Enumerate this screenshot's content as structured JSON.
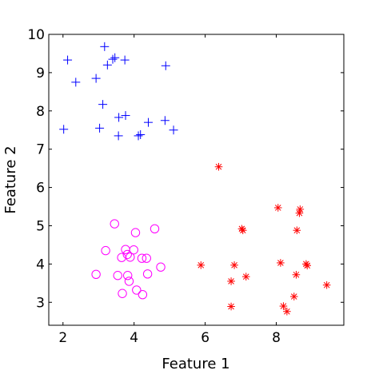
{
  "chart_data": {
    "type": "scatter",
    "title": "",
    "xlabel": "Feature 1",
    "ylabel": "Feature 2",
    "xlim": [
      1.6,
      9.9
    ],
    "ylim": [
      2.4,
      10.0
    ],
    "xticks": [
      2,
      4,
      6,
      8
    ],
    "yticks": [
      3,
      4,
      5,
      6,
      7,
      8,
      9,
      10
    ],
    "grid": false,
    "series": [
      {
        "marker": "plus",
        "color": "#0000ff",
        "points": [
          [
            2.13,
            9.33
          ],
          [
            3.17,
            9.68
          ],
          [
            3.46,
            9.39
          ],
          [
            3.74,
            9.33
          ],
          [
            3.4,
            9.35
          ],
          [
            3.25,
            9.2
          ],
          [
            4.89,
            9.18
          ],
          [
            2.93,
            8.85
          ],
          [
            2.36,
            8.75
          ],
          [
            3.12,
            8.17
          ],
          [
            3.57,
            7.83
          ],
          [
            3.76,
            7.88
          ],
          [
            4.4,
            7.7
          ],
          [
            4.87,
            7.75
          ],
          [
            2.02,
            7.52
          ],
          [
            3.03,
            7.55
          ],
          [
            5.11,
            7.5
          ],
          [
            3.56,
            7.35
          ],
          [
            4.12,
            7.35
          ],
          [
            4.18,
            7.38
          ]
        ]
      },
      {
        "marker": "circle",
        "color": "#ff00ff",
        "points": [
          [
            3.45,
            5.05
          ],
          [
            4.58,
            4.92
          ],
          [
            4.04,
            4.82
          ],
          [
            3.2,
            4.35
          ],
          [
            3.76,
            4.38
          ],
          [
            3.99,
            4.37
          ],
          [
            3.81,
            4.25
          ],
          [
            3.65,
            4.17
          ],
          [
            3.89,
            4.18
          ],
          [
            4.22,
            4.15
          ],
          [
            4.35,
            4.15
          ],
          [
            4.75,
            3.92
          ],
          [
            3.54,
            3.7
          ],
          [
            3.82,
            3.7
          ],
          [
            4.38,
            3.74
          ],
          [
            2.93,
            3.73
          ],
          [
            3.86,
            3.55
          ],
          [
            4.07,
            3.32
          ],
          [
            3.67,
            3.23
          ],
          [
            4.24,
            3.2
          ]
        ]
      },
      {
        "marker": "asterisk",
        "color": "#ff0000",
        "points": [
          [
            6.38,
            6.54
          ],
          [
            8.05,
            5.47
          ],
          [
            8.67,
            5.43
          ],
          [
            8.65,
            5.33
          ],
          [
            7.03,
            4.92
          ],
          [
            7.06,
            4.88
          ],
          [
            8.58,
            4.88
          ],
          [
            5.88,
            3.97
          ],
          [
            6.82,
            3.97
          ],
          [
            8.12,
            4.03
          ],
          [
            8.84,
            4.0
          ],
          [
            8.87,
            3.96
          ],
          [
            7.15,
            3.67
          ],
          [
            8.56,
            3.72
          ],
          [
            6.73,
            3.55
          ],
          [
            9.42,
            3.45
          ],
          [
            8.5,
            3.15
          ],
          [
            6.73,
            2.89
          ],
          [
            8.2,
            2.9
          ],
          [
            8.3,
            2.76
          ]
        ]
      }
    ]
  }
}
